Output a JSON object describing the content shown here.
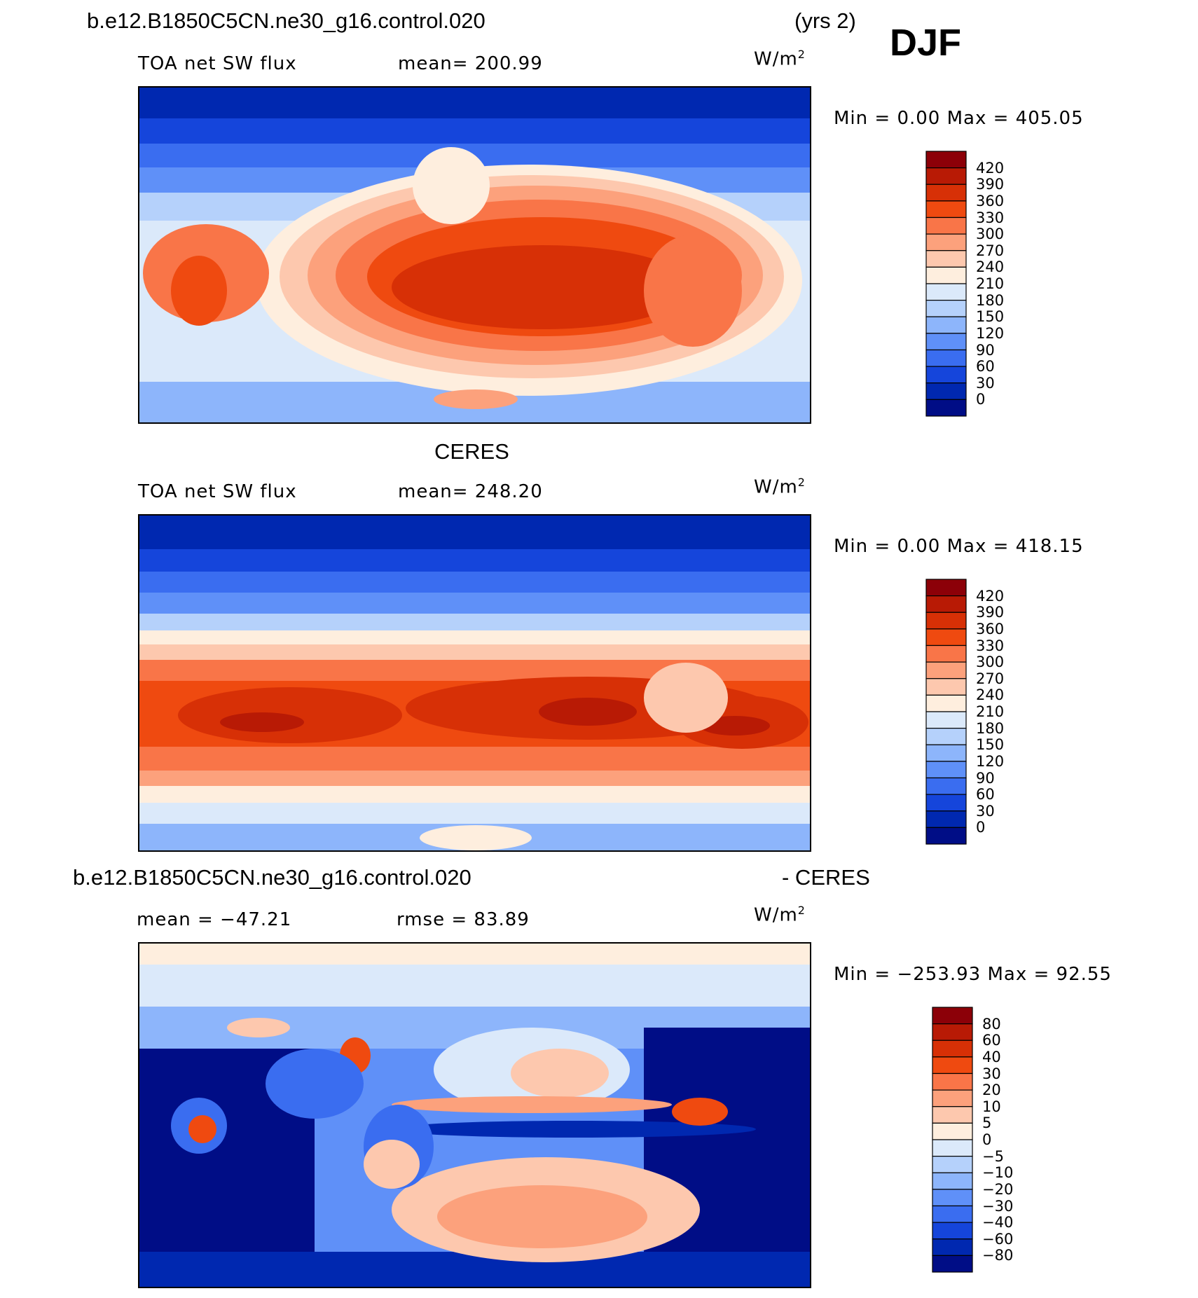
{
  "figure": {
    "case_name": "b.e12.B1850C5CN.ne30_g16.control.020",
    "years": "(yrs 2)",
    "season": "DJF"
  },
  "panels": [
    {
      "id": "model",
      "title": "b.e12.B1850C5CN.ne30_g16.control.020",
      "variable": "TOA net SW flux",
      "stat_text": "mean= 200.99",
      "units_main": "W/m",
      "units_sup": "2",
      "minmax": "Min =    0.00 Max = 405.05",
      "colorbar_labels": [
        "420",
        "390",
        "360",
        "330",
        "300",
        "270",
        "240",
        "210",
        "180",
        "150",
        "120",
        "90",
        "60",
        "30",
        "0"
      ],
      "colors": [
        "#8c0008",
        "#b81a05",
        "#d73006",
        "#ef4a10",
        "#f97548",
        "#fca17c",
        "#fdc8ae",
        "#feeede",
        "#dbe9fa",
        "#b5d1fb",
        "#8db5fb",
        "#5f90f8",
        "#3a6df0",
        "#1545db",
        "#0028b0",
        "#000d86"
      ]
    },
    {
      "id": "obs",
      "title": "CERES",
      "variable": "TOA net SW flux",
      "stat_text": "mean= 248.20",
      "units_main": "W/m",
      "units_sup": "2",
      "minmax": "Min =    0.00 Max = 418.15",
      "colorbar_labels": [
        "420",
        "390",
        "360",
        "330",
        "300",
        "270",
        "240",
        "210",
        "180",
        "150",
        "120",
        "90",
        "60",
        "30",
        "0"
      ],
      "colors": [
        "#8c0008",
        "#b81a05",
        "#d73006",
        "#ef4a10",
        "#f97548",
        "#fca17c",
        "#fdc8ae",
        "#feeede",
        "#dbe9fa",
        "#b5d1fb",
        "#8db5fb",
        "#5f90f8",
        "#3a6df0",
        "#1545db",
        "#0028b0",
        "#000d86"
      ]
    },
    {
      "id": "diff",
      "title_left": "b.e12.B1850C5CN.ne30_g16.control.020",
      "title_right": "- CERES",
      "stat_mean": "mean = −47.21",
      "stat_rmse": "rmse =   83.89",
      "units_main": "W/m",
      "units_sup": "2",
      "minmax": "Min = −253.93 Max =   92.55",
      "colorbar_labels": [
        "80",
        "60",
        "40",
        "30",
        "20",
        "10",
        "5",
        "0",
        "−5",
        "−10",
        "−20",
        "−30",
        "−40",
        "−60",
        "−80"
      ],
      "colors": [
        "#8c0008",
        "#b81a05",
        "#d73006",
        "#ef4a10",
        "#f97548",
        "#fca17c",
        "#fdc8ae",
        "#feeede",
        "#dbe9fa",
        "#b5d1fb",
        "#8db5fb",
        "#5f90f8",
        "#3a6df0",
        "#1545db",
        "#0028b0",
        "#000d86"
      ]
    }
  ]
}
